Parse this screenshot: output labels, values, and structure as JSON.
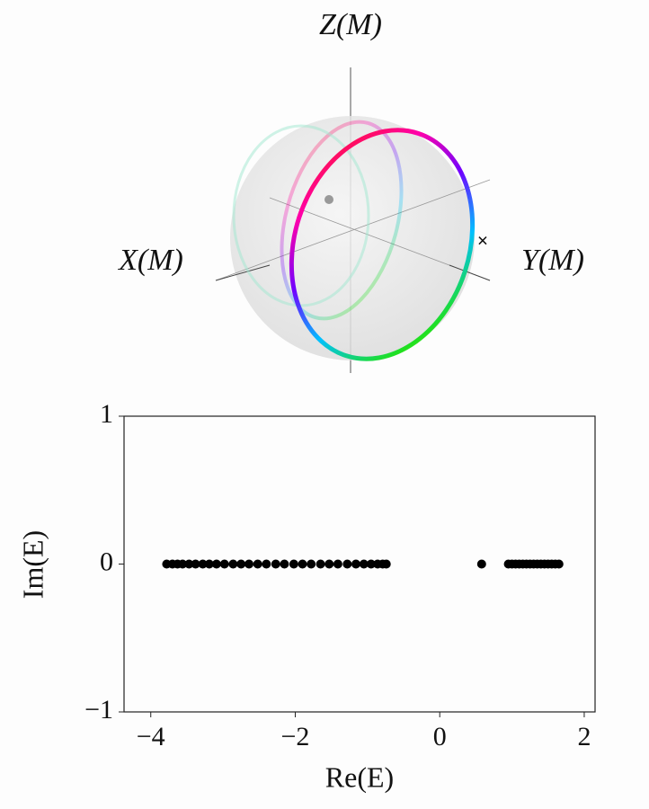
{
  "chart_data": [
    {
      "type": "sphere",
      "axis_labels": {
        "z": "Z(M)",
        "x": "X(M)",
        "y": "Y(M)"
      }
    },
    {
      "type": "scatter",
      "xlabel": "Re(E)",
      "ylabel": "Im(E)",
      "x": [
        -3.78,
        -3.7,
        -3.63,
        -3.56,
        -3.47,
        -3.38,
        -3.28,
        -3.19,
        -3.09,
        -2.98,
        -2.86,
        -2.75,
        -2.64,
        -2.52,
        -2.4,
        -2.27,
        -2.15,
        -2.02,
        -1.9,
        -1.78,
        -1.65,
        -1.53,
        -1.41,
        -1.28,
        -1.16,
        -1.05,
        -0.95,
        -0.86,
        -0.79,
        -0.74,
        0.58,
        0.95,
        1.0,
        1.05,
        1.1,
        1.15,
        1.2,
        1.25,
        1.3,
        1.35,
        1.4,
        1.45,
        1.5,
        1.55,
        1.6,
        1.65
      ],
      "values": [
        0,
        0,
        0,
        0,
        0,
        0,
        0,
        0,
        0,
        0,
        0,
        0,
        0,
        0,
        0,
        0,
        0,
        0,
        0,
        0,
        0,
        0,
        0,
        0,
        0,
        0,
        0,
        0,
        0,
        0,
        0,
        0,
        0,
        0,
        0,
        0,
        0,
        0,
        0,
        0,
        0,
        0,
        0,
        0,
        0,
        0
      ],
      "color": "#000000",
      "xlim": [
        -4.37,
        2.15
      ],
      "ylim": [
        -1,
        1
      ],
      "xticks": [
        {
          "value": -4,
          "label": "−4"
        },
        {
          "value": -2,
          "label": "−2"
        },
        0,
        2
      ],
      "yticks": [
        {
          "value": -1,
          "label": "−1"
        },
        0,
        1
      ]
    }
  ]
}
